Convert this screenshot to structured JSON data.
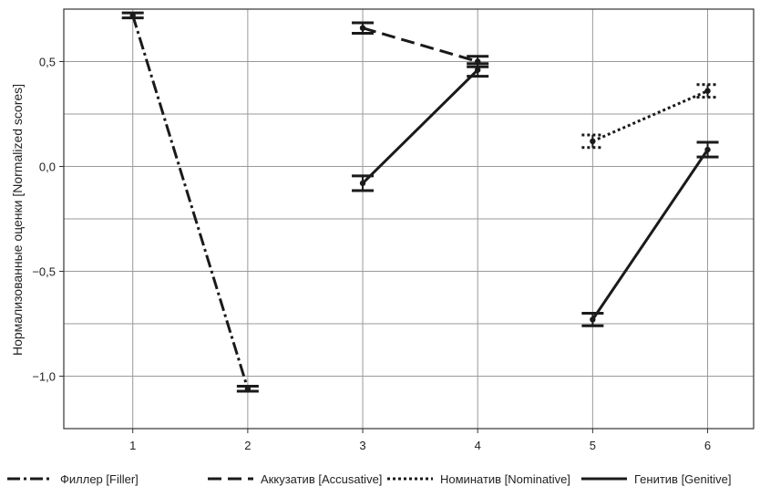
{
  "chart_data": {
    "type": "line",
    "ylabel": "Нормализованные оценки [Normalized scores]",
    "xlabel": "",
    "x_ticks": [
      "1",
      "2",
      "3",
      "4",
      "5",
      "6"
    ],
    "y_ticks": [
      "−1,0",
      "−0,5",
      "0,0",
      "0,5"
    ],
    "y_tick_values": [
      -1.0,
      -0.5,
      0.0,
      0.5
    ],
    "xlim": [
      0.4,
      6.4
    ],
    "ylim": [
      -1.25,
      0.75
    ],
    "grid": true,
    "legend_position": "bottom",
    "series": [
      {
        "name": "Филлер [Filler]",
        "style": "dashdot",
        "points": [
          {
            "x": 1,
            "y": 0.72,
            "err": 0.012
          },
          {
            "x": 2,
            "y": -1.06,
            "err": 0.012
          }
        ]
      },
      {
        "name": "Аккузатив [Accusative]",
        "style": "dashed",
        "points": [
          {
            "x": 3,
            "y": 0.66,
            "err": 0.025
          },
          {
            "x": 4,
            "y": 0.5,
            "err": 0.025
          }
        ]
      },
      {
        "name": "Номинатив [Nominative]",
        "style": "dotted",
        "points": [
          {
            "x": 5,
            "y": 0.12,
            "err": 0.03
          },
          {
            "x": 6,
            "y": 0.36,
            "err": 0.03
          }
        ]
      },
      {
        "name": "Генитив [Genitive]",
        "style": "solid",
        "points": [
          {
            "x": 3,
            "y": -0.08,
            "err": 0.035
          },
          {
            "x": 4,
            "y": 0.46,
            "err": 0.03
          },
          {
            "x": 5,
            "y": -0.73,
            "err": 0.03
          },
          {
            "x": 6,
            "y": 0.08,
            "err": 0.035
          }
        ],
        "segments": [
          [
            0,
            1
          ],
          [
            2,
            3
          ]
        ]
      }
    ]
  }
}
